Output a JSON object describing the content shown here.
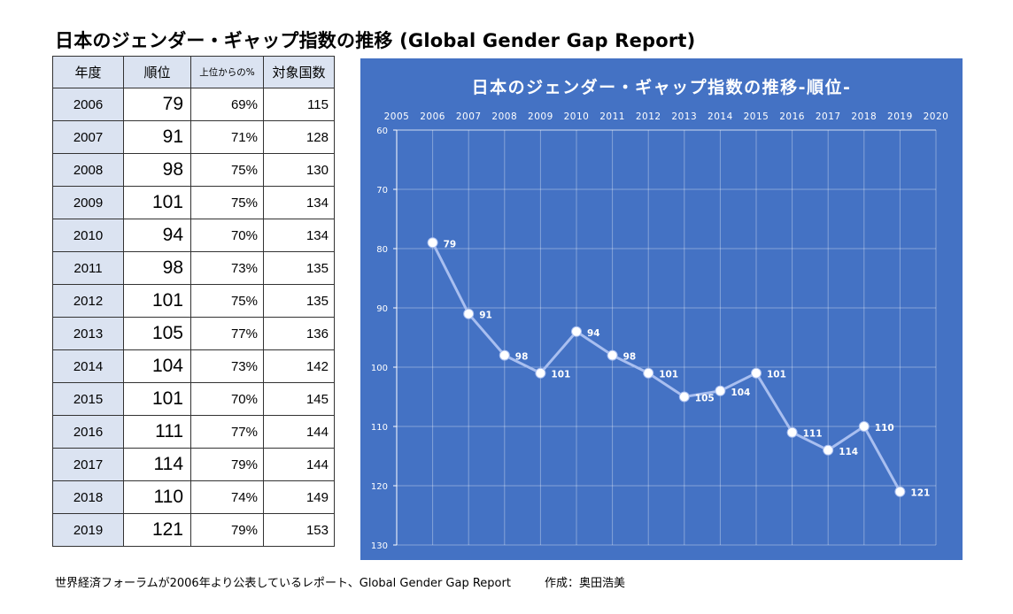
{
  "page": {
    "title": "日本のジェンダー・ギャップ指数の推移 (Global Gender Gap Report)",
    "footnote": "世界経済フォーラムが2006年より公表しているレポート、Global Gender Gap Report",
    "author": "作成：奥田浩美"
  },
  "table": {
    "headers": [
      "年度",
      "順位",
      "上位からの%",
      "対象国数"
    ],
    "rows": [
      {
        "year": "2006",
        "rank": "79",
        "pct": "69%",
        "count": "115"
      },
      {
        "year": "2007",
        "rank": "91",
        "pct": "71%",
        "count": "128"
      },
      {
        "year": "2008",
        "rank": "98",
        "pct": "75%",
        "count": "130"
      },
      {
        "year": "2009",
        "rank": "101",
        "pct": "75%",
        "count": "134"
      },
      {
        "year": "2010",
        "rank": "94",
        "pct": "70%",
        "count": "134"
      },
      {
        "year": "2011",
        "rank": "98",
        "pct": "73%",
        "count": "135"
      },
      {
        "year": "2012",
        "rank": "101",
        "pct": "75%",
        "count": "135"
      },
      {
        "year": "2013",
        "rank": "105",
        "pct": "77%",
        "count": "136"
      },
      {
        "year": "2014",
        "rank": "104",
        "pct": "73%",
        "count": "142"
      },
      {
        "year": "2015",
        "rank": "101",
        "pct": "70%",
        "count": "145"
      },
      {
        "year": "2016",
        "rank": "111",
        "pct": "77%",
        "count": "144"
      },
      {
        "year": "2017",
        "rank": "114",
        "pct": "79%",
        "count": "144"
      },
      {
        "year": "2018",
        "rank": "110",
        "pct": "74%",
        "count": "149"
      },
      {
        "year": "2019",
        "rank": "121",
        "pct": "79%",
        "count": "153"
      }
    ]
  },
  "chart_data": {
    "type": "line",
    "title": "日本のジェンダー・ギャップ指数の推移-順位-",
    "x": [
      2006,
      2007,
      2008,
      2009,
      2010,
      2011,
      2012,
      2013,
      2014,
      2015,
      2016,
      2017,
      2018,
      2019
    ],
    "y": [
      79,
      91,
      98,
      101,
      94,
      98,
      101,
      105,
      104,
      101,
      111,
      114,
      110,
      121
    ],
    "data_labels": [
      "79",
      "91",
      "98",
      "101",
      "94",
      "98",
      "101",
      "105",
      "104",
      "101",
      "111",
      "114",
      "110",
      "121"
    ],
    "xlim": [
      2005,
      2020
    ],
    "x_ticks": [
      "2005",
      "2006",
      "2007",
      "2008",
      "2009",
      "2010",
      "2011",
      "2012",
      "2013",
      "2014",
      "2015",
      "2016",
      "2017",
      "2018",
      "2019",
      "2020"
    ],
    "x_axis_position": "top",
    "ylim": [
      60,
      130
    ],
    "y_ticks": [
      "60",
      "70",
      "80",
      "90",
      "100",
      "110",
      "120",
      "130"
    ],
    "y_reversed": true,
    "grid": true,
    "background": "#4472c4",
    "line_color": "#a9bff0",
    "marker_color": "#ffffff",
    "text_color": "#ffffff"
  }
}
